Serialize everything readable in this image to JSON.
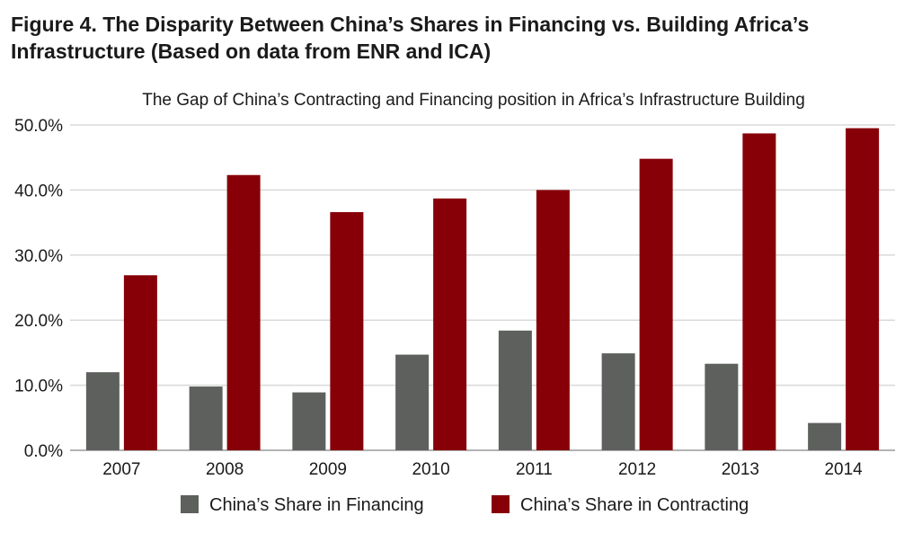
{
  "figure": {
    "title_line1": "Figure 4. The Disparity Between China’s Shares in Financing vs. Building Africa’s",
    "title_line2": "Infrastructure (Based on data from ENR and ICA)"
  },
  "chart_data": {
    "type": "bar",
    "title": "The Gap of China’s Contracting and Financing position in Africa’s Infrastructure Building",
    "categories": [
      "2007",
      "2008",
      "2009",
      "2010",
      "2011",
      "2012",
      "2013",
      "2014"
    ],
    "series": [
      {
        "name": "China’s Share in Financing",
        "color": "#5d605d",
        "values": [
          12.0,
          9.8,
          8.9,
          14.7,
          18.4,
          14.9,
          13.3,
          4.2
        ]
      },
      {
        "name": "China’s Share in Contracting",
        "color": "#870008",
        "values": [
          26.9,
          42.3,
          36.6,
          38.7,
          40.0,
          44.8,
          48.7,
          49.5
        ]
      }
    ],
    "ylim": [
      0,
      50
    ],
    "yticks": [
      0,
      10,
      20,
      30,
      40,
      50
    ],
    "ytick_labels": [
      "0.0%",
      "10.0%",
      "20.0%",
      "30.0%",
      "40.0%",
      "50.0%"
    ],
    "grid": true,
    "legend_position": "bottom"
  }
}
